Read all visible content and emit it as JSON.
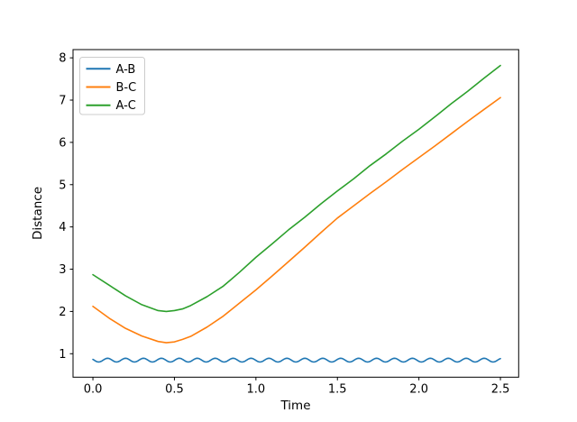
{
  "chart_data": {
    "type": "line",
    "title": "",
    "xlabel": "Time",
    "ylabel": "Distance",
    "xlim": [
      -0.122,
      2.612
    ],
    "ylim": [
      0.445,
      8.195
    ],
    "grid": false,
    "legend_position": "upper left",
    "xticks": {
      "values": [
        0.0,
        0.5,
        1.0,
        1.5,
        2.0,
        2.5
      ],
      "labels": [
        "0.0",
        "0.5",
        "1.0",
        "1.5",
        "2.0",
        "2.5"
      ]
    },
    "yticks": {
      "values": [
        1,
        2,
        3,
        4,
        5,
        6,
        7,
        8
      ],
      "labels": [
        "1",
        "2",
        "3",
        "4",
        "5",
        "6",
        "7",
        "8"
      ]
    },
    "x": [
      0,
      0.1,
      0.2,
      0.3,
      0.4,
      0.45,
      0.5,
      0.55,
      0.6,
      0.7,
      0.8,
      0.9,
      1.0,
      1.1,
      1.2,
      1.3,
      1.4,
      1.5,
      1.6,
      1.7,
      1.8,
      1.9,
      2.0,
      2.1,
      2.2,
      2.3,
      2.4,
      2.5
    ],
    "series": [
      {
        "name": "A-B",
        "color": "#1f77b4",
        "wave": {
          "mean": 0.848,
          "amplitude": 0.044,
          "period": 0.11,
          "phase": 2.7,
          "x_start": 0,
          "x_end": 2.5,
          "step": 0.005
        }
      },
      {
        "name": "B-C",
        "color": "#ff7f0e",
        "values": [
          2.12,
          1.84,
          1.6,
          1.42,
          1.29,
          1.26,
          1.28,
          1.34,
          1.41,
          1.63,
          1.89,
          2.2,
          2.51,
          2.84,
          3.18,
          3.52,
          3.87,
          4.21,
          4.5,
          4.79,
          5.07,
          5.36,
          5.64,
          5.92,
          6.21,
          6.5,
          6.78,
          7.06
        ]
      },
      {
        "name": "A-C",
        "color": "#2ca02c",
        "values": [
          2.87,
          2.62,
          2.37,
          2.16,
          2.02,
          2.0,
          2.02,
          2.06,
          2.14,
          2.35,
          2.6,
          2.93,
          3.28,
          3.6,
          3.93,
          4.23,
          4.55,
          4.85,
          5.14,
          5.45,
          5.73,
          6.03,
          6.31,
          6.61,
          6.92,
          7.21,
          7.52,
          7.82
        ]
      }
    ],
    "axis_color": "#000000",
    "legend_border_color": "#cccccc",
    "background_color": "#ffffff"
  }
}
